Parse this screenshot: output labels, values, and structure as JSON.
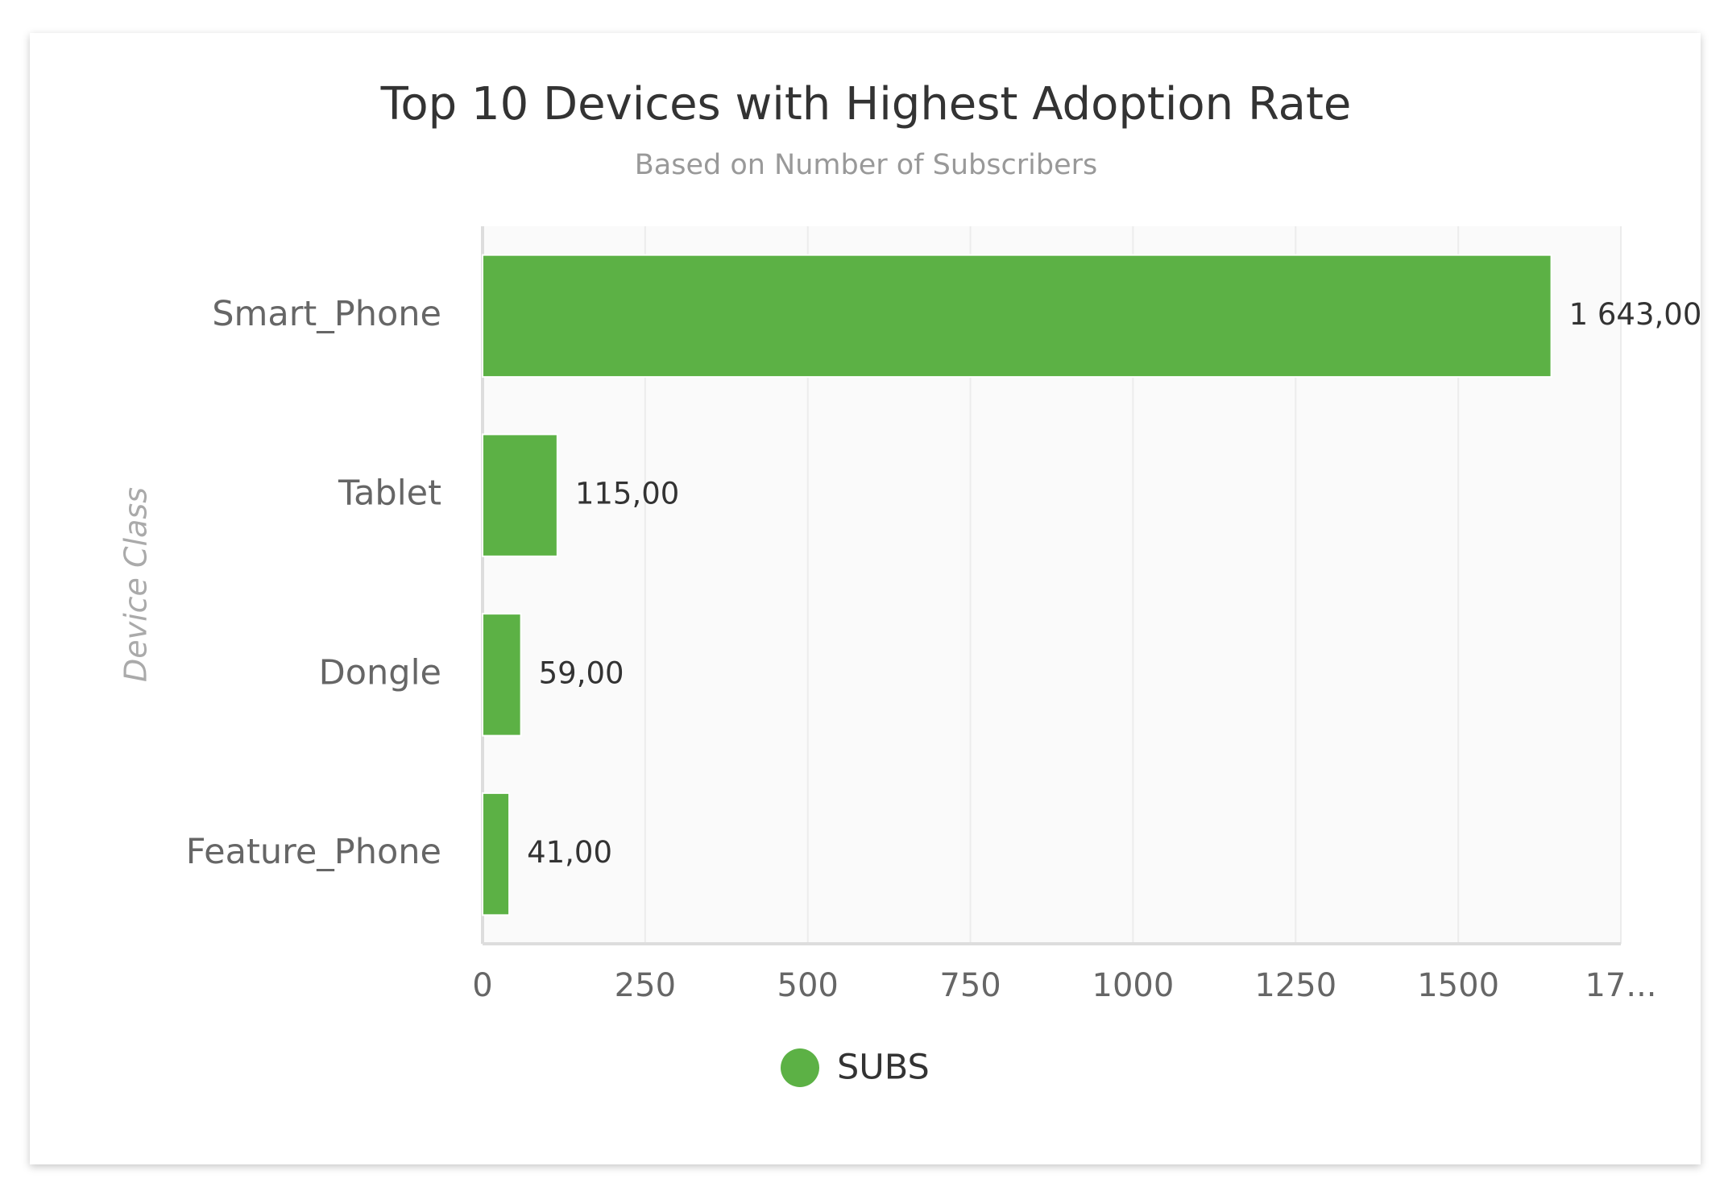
{
  "chart_data": {
    "type": "bar",
    "orientation": "horizontal",
    "title": "Top 10 Devices with Highest Adoption Rate",
    "subtitle": "Based on Number of Subscribers",
    "y_label": "Device Class",
    "categories": [
      "Smart_Phone",
      "Tablet",
      "Dongle",
      "Feature_Phone"
    ],
    "series": [
      {
        "name": "SUBS",
        "color": "#5cb145",
        "values": [
          1643,
          115,
          59,
          41
        ],
        "value_labels": [
          "1 643,00",
          "115,00",
          "59,00",
          "41,00"
        ]
      }
    ],
    "xlim": [
      0,
      1750
    ],
    "xticks": [
      0,
      250,
      500,
      750,
      1000,
      1250,
      1500,
      {
        "value": 1750,
        "label": "17..."
      }
    ],
    "grid": true,
    "legend": "bottom"
  }
}
